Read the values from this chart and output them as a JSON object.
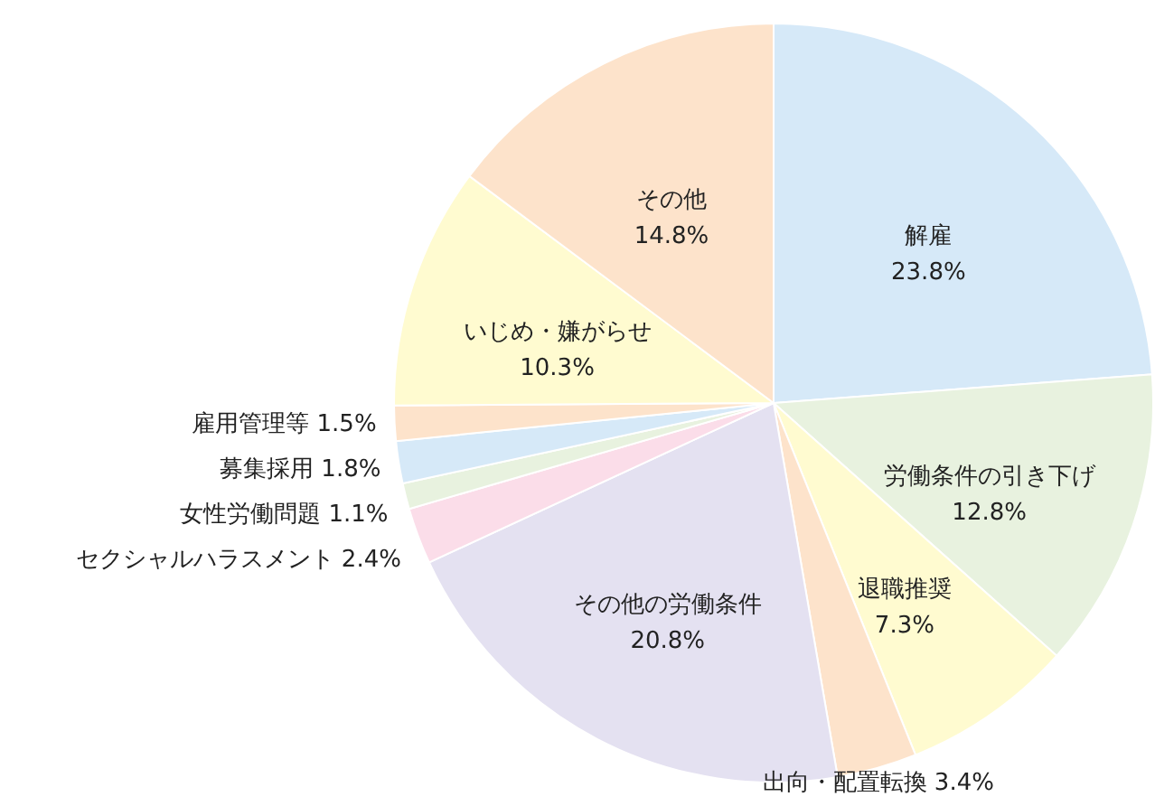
{
  "chart_data": {
    "type": "pie",
    "categories": [
      "解雇",
      "労働条件の引き下げ",
      "退職推奨",
      "出向・配置転換",
      "その他の労働条件",
      "セクシャルハラスメント",
      "女性労働問題",
      "募集採用",
      "雇用管理等",
      "いじめ・嫌がらせ",
      "その他"
    ],
    "values": [
      23.8,
      12.8,
      7.3,
      3.4,
      20.8,
      2.4,
      1.1,
      1.8,
      1.5,
      10.3,
      14.8
    ],
    "value_labels": [
      "23.8%",
      "12.8%",
      "7.3%",
      "3.4%",
      "20.8%",
      "2.4%",
      "1.1%",
      "1.8%",
      "1.5%",
      "10.3%",
      "14.8%"
    ],
    "colors": [
      "#d6e9f8",
      "#e8f2df",
      "#fffbd0",
      "#fde3cb",
      "#e4e1f1",
      "#fbdde9",
      "#e8f2df",
      "#d6e9f8",
      "#fde3cb",
      "#fffbd0",
      "#fde3cb"
    ]
  }
}
